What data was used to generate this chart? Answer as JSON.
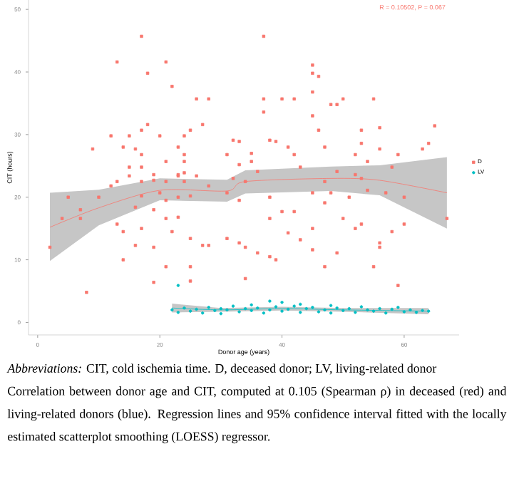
{
  "chart_data": {
    "type": "scatter",
    "xlabel": "Donor age (years)",
    "ylabel": "CIT (hours)",
    "xlim": [
      -1.5,
      69
    ],
    "ylim": [
      -2,
      51.5
    ],
    "xticks": [
      0,
      20,
      40,
      60
    ],
    "yticks": [
      0,
      10,
      20,
      30,
      40,
      50
    ],
    "legend": "right",
    "annotations": [
      "R = 0.10502, P = 0.067",
      "*Abbreviations:* CIT, cold ischemia time. D, deceased donor; LV, living-related donor",
      "Correlation between donor age and CIT, computed at 0.105 (Spearman ρ) in deceased (red) and living-related donors (blue). Regression lines and 95% confidence interval fitted with the locally estimated scatterplot smoothing (LOESS) regressor."
    ],
    "series": [
      {
        "name": "D",
        "color": "#f8766d",
        "marker": "square",
        "x": [
          17,
          37,
          13,
          21,
          18,
          45,
          45,
          46,
          22,
          45,
          26,
          28,
          37,
          40,
          42,
          48,
          49,
          50,
          55,
          37,
          45,
          18,
          17,
          27,
          25,
          12,
          15,
          20,
          24,
          32,
          33,
          38,
          39,
          46,
          53,
          56,
          65,
          9,
          14,
          16,
          23,
          31,
          35,
          41,
          47,
          53,
          64,
          17,
          24,
          42,
          52,
          56,
          59,
          63,
          15,
          17,
          21,
          24,
          35,
          43,
          54,
          58,
          19,
          23,
          24,
          49,
          33,
          13,
          15,
          17,
          19,
          21,
          23,
          24,
          26,
          32,
          34,
          36,
          47,
          52,
          53,
          5,
          10,
          12,
          17,
          20,
          21,
          23,
          25,
          28,
          31,
          33,
          38,
          40,
          42,
          45,
          47,
          48,
          51,
          54,
          57,
          60,
          7,
          7,
          4,
          2,
          13,
          14,
          16,
          17,
          19,
          21,
          22,
          23,
          25,
          27,
          16,
          19,
          14,
          21,
          25,
          19,
          25,
          8,
          31,
          33,
          34,
          34,
          36,
          38,
          38,
          39,
          41,
          43,
          45,
          45,
          47,
          49,
          50,
          52,
          53,
          55,
          56,
          56,
          58,
          60,
          59,
          67,
          28
        ],
        "values": [
          45.7,
          45.7,
          41.6,
          41.6,
          39.8,
          41.1,
          39.8,
          39.3,
          37.7,
          36.8,
          35.7,
          35.7,
          35.7,
          35.7,
          35.7,
          34.8,
          34.8,
          35.7,
          35.7,
          33.6,
          33.0,
          31.6,
          30.7,
          31.6,
          30.7,
          29.8,
          29.8,
          29.8,
          29.8,
          29.1,
          28.9,
          29.1,
          28.9,
          30.7,
          30.7,
          31.1,
          31.4,
          27.7,
          28.0,
          27.7,
          28.0,
          26.8,
          27.0,
          28.0,
          28.0,
          28.6,
          28.6,
          26.8,
          26.8,
          26.8,
          26.8,
          27.7,
          26.8,
          27.7,
          24.8,
          24.8,
          25.7,
          25.7,
          25.7,
          24.8,
          25.7,
          24.8,
          23.6,
          23.6,
          23.9,
          24.1,
          25.2,
          22.5,
          23.4,
          22.5,
          22.7,
          22.5,
          23.4,
          22.5,
          23.4,
          23.0,
          22.5,
          24.1,
          22.5,
          23.6,
          23.0,
          20.0,
          20.0,
          21.8,
          20.2,
          20.7,
          19.5,
          20.0,
          20.2,
          21.8,
          20.7,
          19.5,
          20.0,
          17.7,
          17.7,
          20.7,
          19.1,
          20.7,
          20.0,
          21.1,
          20.7,
          20.0,
          18.0,
          16.6,
          16.6,
          12.0,
          15.7,
          14.5,
          18.4,
          15.0,
          18.0,
          16.6,
          14.5,
          16.8,
          13.4,
          12.3,
          12.3,
          12.0,
          10.0,
          8.9,
          8.9,
          6.4,
          6.6,
          4.8,
          13.4,
          12.7,
          12.0,
          7.0,
          11.1,
          16.6,
          10.5,
          10.0,
          14.3,
          13.2,
          15.0,
          11.6,
          8.9,
          11.1,
          16.6,
          15.0,
          15.7,
          8.9,
          12.7,
          12.0,
          14.5,
          15.7,
          5.9,
          16.6,
          12.3
        ]
      },
      {
        "type": "line",
        "color": "#f8766d",
        "x": [
          2,
          10,
          20,
          31,
          34,
          48,
          56,
          67
        ],
        "values": [
          15.2,
          18.3,
          21.1,
          21.0,
          22.5,
          23.0,
          22.7,
          20.7
        ],
        "lower": [
          9.8,
          15.5,
          19.5,
          19.3,
          20.6,
          21.0,
          20.3,
          15.0
        ],
        "upper": [
          20.7,
          21.2,
          23.0,
          22.8,
          24.3,
          24.9,
          25.1,
          26.4
        ]
      },
      {
        "name": "LV",
        "color": "#00bfc4",
        "marker": "circle",
        "x": [
          22,
          23,
          24,
          25,
          26,
          27,
          28,
          29,
          30,
          30,
          31,
          32,
          33,
          34,
          35,
          35,
          36,
          37,
          38,
          38,
          39,
          40,
          40,
          41,
          42,
          43,
          43,
          44,
          45,
          46,
          47,
          48,
          48,
          49,
          50,
          51,
          52,
          53,
          54,
          55,
          56,
          57,
          58,
          59,
          60,
          61,
          62,
          63,
          64,
          23
        ],
        "values": [
          2.0,
          1.6,
          2.3,
          1.8,
          2.1,
          1.5,
          2.4,
          1.9,
          2.2,
          1.4,
          2.0,
          2.6,
          1.7,
          2.2,
          1.9,
          2.8,
          2.3,
          1.5,
          3.4,
          2.0,
          2.5,
          1.8,
          3.2,
          2.1,
          2.6,
          1.6,
          2.9,
          2.2,
          2.4,
          1.7,
          2.0,
          2.7,
          1.5,
          2.3,
          1.9,
          2.2,
          1.6,
          2.5,
          2.0,
          1.8,
          2.2,
          1.5,
          2.1,
          2.4,
          1.7,
          2.0,
          1.6,
          1.9,
          1.8,
          5.9
        ]
      },
      {
        "type": "line",
        "color": "#00bfc4",
        "x": [
          22,
          30,
          40,
          50,
          64
        ],
        "values": [
          2.3,
          2.0,
          2.2,
          2.0,
          1.8
        ],
        "lower": [
          1.6,
          1.7,
          1.9,
          1.7,
          1.3
        ],
        "upper": [
          3.0,
          2.3,
          2.5,
          2.3,
          2.3
        ]
      }
    ]
  }
}
